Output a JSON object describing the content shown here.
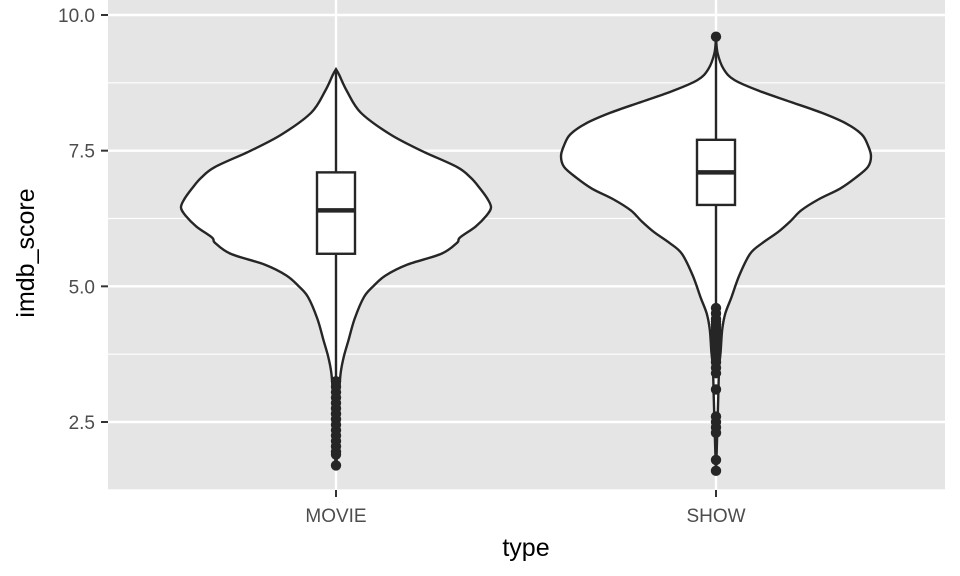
{
  "chart_data": {
    "type": "violin",
    "xlabel": "type",
    "ylabel": "imdb_score",
    "categories": [
      "MOVIE",
      "SHOW"
    ],
    "ylim": [
      1.2,
      10.0
    ],
    "yticks": [
      2.5,
      5.0,
      7.5,
      10.0
    ],
    "ytick_labels": [
      "2.5",
      "5.0",
      "7.5",
      "10.0"
    ],
    "grid": true,
    "background": "#e5e5e5",
    "grid_color": "#ffffff",
    "series": [
      {
        "category": "MOVIE",
        "box": {
          "q1": 5.6,
          "median": 6.4,
          "q3": 7.1,
          "whisker_low": 3.3,
          "whisker_high": 9.0
        },
        "outliers": [
          3.25,
          3.15,
          3.05,
          2.95,
          2.85,
          2.75,
          2.65,
          2.55,
          2.45,
          2.35,
          2.25,
          2.15,
          2.05,
          1.95,
          1.9,
          1.7
        ],
        "density": [
          [
            9.0,
            0.0
          ],
          [
            8.9,
            0.02
          ],
          [
            8.6,
            0.07
          ],
          [
            8.2,
            0.16
          ],
          [
            7.8,
            0.35
          ],
          [
            7.5,
            0.55
          ],
          [
            7.2,
            0.78
          ],
          [
            7.0,
            0.87
          ],
          [
            6.8,
            0.93
          ],
          [
            6.6,
            0.98
          ],
          [
            6.45,
            1.0
          ],
          [
            6.3,
            0.97
          ],
          [
            6.1,
            0.9
          ],
          [
            5.9,
            0.8
          ],
          [
            5.8,
            0.78
          ],
          [
            5.6,
            0.68
          ],
          [
            5.4,
            0.46
          ],
          [
            5.2,
            0.32
          ],
          [
            5.0,
            0.24
          ],
          [
            4.8,
            0.18
          ],
          [
            4.4,
            0.12
          ],
          [
            4.0,
            0.08
          ],
          [
            3.7,
            0.05
          ],
          [
            3.4,
            0.03
          ],
          [
            3.0,
            0.02
          ],
          [
            2.5,
            0.015
          ],
          [
            2.0,
            0.01
          ],
          [
            1.7,
            0.0
          ]
        ]
      },
      {
        "category": "SHOW",
        "box": {
          "q1": 6.5,
          "median": 7.1,
          "q3": 7.7,
          "whisker_low": 4.6,
          "whisker_high": 9.6
        },
        "outliers": [
          9.6,
          4.6,
          4.5,
          4.4,
          4.35,
          4.3,
          4.25,
          4.2,
          4.15,
          4.1,
          4.05,
          4.0,
          3.95,
          3.9,
          3.85,
          3.8,
          3.75,
          3.7,
          3.6,
          3.5,
          3.4,
          3.1,
          2.6,
          2.5,
          2.4,
          2.3,
          1.8,
          1.6
        ],
        "density": [
          [
            9.6,
            0.0
          ],
          [
            9.3,
            0.01
          ],
          [
            9.0,
            0.05
          ],
          [
            8.8,
            0.12
          ],
          [
            8.6,
            0.28
          ],
          [
            8.4,
            0.48
          ],
          [
            8.2,
            0.68
          ],
          [
            8.0,
            0.84
          ],
          [
            7.8,
            0.94
          ],
          [
            7.6,
            0.98
          ],
          [
            7.4,
            1.0
          ],
          [
            7.2,
            0.98
          ],
          [
            7.0,
            0.9
          ],
          [
            6.8,
            0.8
          ],
          [
            6.6,
            0.66
          ],
          [
            6.4,
            0.55
          ],
          [
            6.2,
            0.48
          ],
          [
            6.0,
            0.4
          ],
          [
            5.8,
            0.3
          ],
          [
            5.6,
            0.22
          ],
          [
            5.2,
            0.15
          ],
          [
            4.8,
            0.1
          ],
          [
            4.5,
            0.06
          ],
          [
            4.2,
            0.04
          ],
          [
            3.8,
            0.03
          ],
          [
            3.5,
            0.02
          ],
          [
            3.0,
            0.015
          ],
          [
            2.5,
            0.01
          ],
          [
            2.0,
            0.005
          ],
          [
            1.6,
            0.0
          ]
        ]
      }
    ]
  }
}
